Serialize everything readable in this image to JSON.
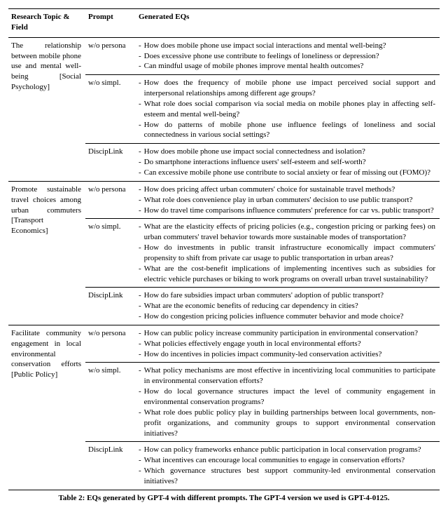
{
  "headers": {
    "topic": "Research Topic & Field",
    "prompt": "Prompt",
    "eqs": "Generated EQs"
  },
  "topics": [
    {
      "title": "The relationship between mobile phone use and mental well-being [Social Psychology]",
      "rows": [
        {
          "prompt": "w/o persona",
          "eqs": [
            "How does mobile phone use impact social interactions and mental well-being?",
            "Does excessive phone use contribute to feelings of loneliness or depression?",
            "Can mindful usage of mobile phones improve mental health outcomes?"
          ]
        },
        {
          "prompt": "w/o simpl.",
          "eqs": [
            "How does the frequency of mobile phone use impact perceived social support and interpersonal relationships among different age groups?",
            "What role does social comparison via social media on mobile phones play in affecting self-esteem and mental well-being?",
            "How do patterns of mobile phone use influence feelings of loneliness and social connectedness in various social settings?"
          ]
        },
        {
          "prompt": "DiscipLink",
          "eqs": [
            "How does mobile phone use impact social connectedness and isolation?",
            "Do smartphone interactions influence users' self-esteem and self-worth?",
            "Can excessive mobile phone use contribute to social anxiety or fear of missing out (FOMO)?"
          ]
        }
      ]
    },
    {
      "title": "Promote sustainable travel choices among urban commuters [Transport Economics]",
      "rows": [
        {
          "prompt": "w/o persona",
          "eqs": [
            "How does pricing affect urban commuters' choice for sustainable travel methods?",
            "What role does convenience play in urban commuters' decision to use public transport?",
            "How do travel time comparisons influence commuters' preference for car vs. public transport?"
          ]
        },
        {
          "prompt": "w/o simpl.",
          "eqs": [
            "What are the elasticity effects of pricing policies (e.g., congestion pricing or parking fees) on urban commuters' travel behavior towards more sustainable modes of transportation?",
            "How do investments in public transit infrastructure economically impact commuters' propensity to shift from private car usage to public transportation in urban areas?",
            "What are the cost-benefit implications of implementing incentives such as subsidies for electric vehicle purchases or biking to work programs on overall urban travel sustainability?"
          ]
        },
        {
          "prompt": "DiscipLink",
          "eqs": [
            "How do fare subsidies impact urban commuters' adoption of public transport?",
            "What are the economic benefits of reducing car dependency in cities?",
            "How do congestion pricing policies influence commuter behavior and mode choice?"
          ]
        }
      ]
    },
    {
      "title": "Facilitate community engagement in local environmental conservation efforts [Public Policy]",
      "rows": [
        {
          "prompt": "w/o persona",
          "eqs": [
            "How can public policy increase community participation in environmental conservation?",
            "What policies effectively engage youth in local environmental efforts?",
            "How do incentives in policies impact community-led conservation activities?"
          ]
        },
        {
          "prompt": "w/o simpl.",
          "eqs": [
            "What policy mechanisms are most effective in incentivizing local communities to participate in environmental conservation efforts?",
            "How do local governance structures impact the level of community engagement in environmental conservation programs?",
            "What role does public policy play in building partnerships between local governments, non-profit organizations, and community groups to support environmental conservation initiatives?"
          ]
        },
        {
          "prompt": "DiscipLink",
          "eqs": [
            "How can policy frameworks enhance public participation in local conservation programs?",
            "What incentives can encourage local communities to engage in conservation efforts?",
            "Which governance structures best support community-led environmental conservation initiatives?"
          ]
        }
      ]
    }
  ],
  "caption": "Table 2: EQs generated by GPT-4 with different prompts. The GPT-4 version we used is GPT-4-0125."
}
